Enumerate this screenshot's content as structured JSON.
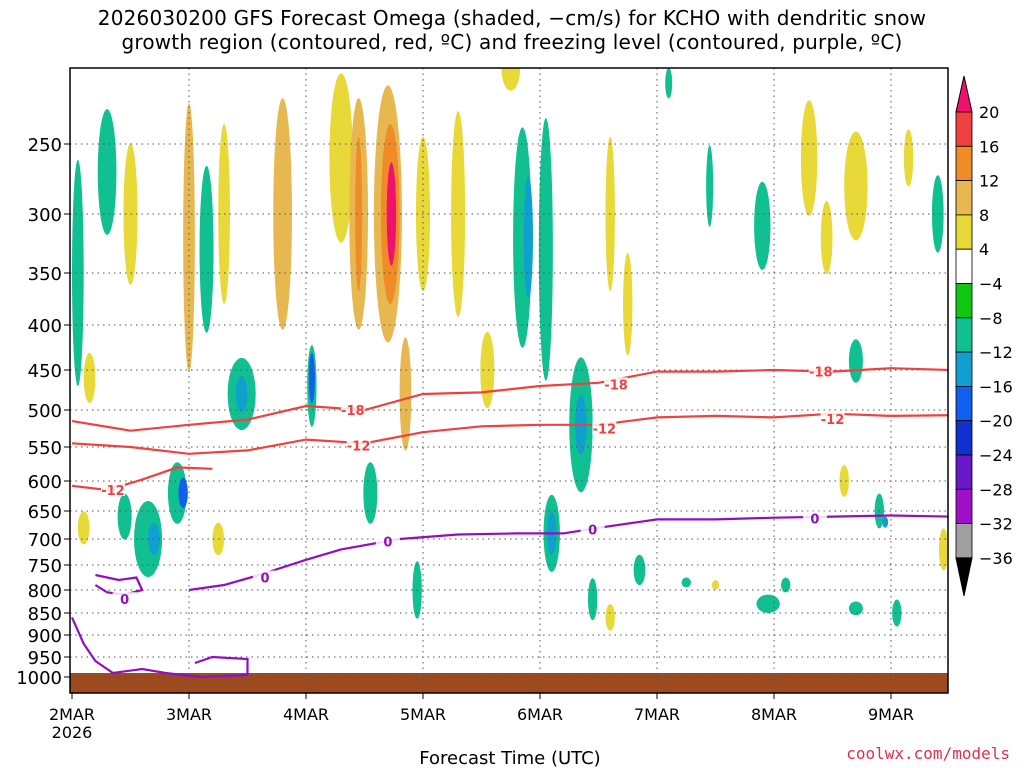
{
  "title": {
    "line1": "2026030200 GFS Forecast Omega (shaded, −cm/s) for KCHO with dendritic snow",
    "line2": "growth region (contoured, red, ºC) and freezing level (contoured, purple, ºC)"
  },
  "credit": "coolwx.com/models",
  "colors": {
    "ground": "#9c4a1e",
    "red_contour": "#f04040",
    "purple_contour": "#9010c0",
    "grid": "#555555"
  },
  "chart_data": {
    "type": "heatmap",
    "title": "2026030200 GFS Forecast Omega (shaded, −cm/s) for KCHO",
    "xlabel": "Forecast Time (UTC)",
    "ylabel": "",
    "x_range_days": [
      0,
      7.5
    ],
    "y_ticks": [
      250,
      300,
      350,
      400,
      450,
      500,
      550,
      600,
      650,
      700,
      750,
      800,
      850,
      900,
      950,
      1000
    ],
    "y_tick_labels": [
      "250",
      "300",
      "350",
      "400",
      "450",
      "500",
      "550",
      "600",
      "650",
      "700",
      "750",
      "800",
      "850",
      "900",
      "950",
      "1000"
    ],
    "x_ticks": [
      {
        "day": 0,
        "label": "2MAR",
        "sub": "2026"
      },
      {
        "day": 1,
        "label": "3MAR",
        "sub": ""
      },
      {
        "day": 2,
        "label": "4MAR",
        "sub": ""
      },
      {
        "day": 3,
        "label": "5MAR",
        "sub": ""
      },
      {
        "day": 4,
        "label": "6MAR",
        "sub": ""
      },
      {
        "day": 5,
        "label": "7MAR",
        "sub": ""
      },
      {
        "day": 6,
        "label": "8MAR",
        "sub": ""
      },
      {
        "day": 7,
        "label": "9MAR",
        "sub": ""
      }
    ],
    "colorbar": {
      "levels": [
        20,
        16,
        12,
        8,
        4,
        -4,
        -8,
        -12,
        -16,
        -20,
        -24,
        -28,
        -32,
        -36
      ],
      "colors": [
        "#f0106e",
        "#f04040",
        "#f08c28",
        "#e8b850",
        "#e8d838",
        "#ffffff",
        "#10c810",
        "#10c090",
        "#10a0d0",
        "#1060f0",
        "#1030d0",
        "#6818c8",
        "#a010c8",
        "#a0a0a0",
        "#000000"
      ]
    },
    "omega_blobs": [
      {
        "t": 0.05,
        "p": 350,
        "dt": 0.05,
        "dp": 200,
        "v": -8
      },
      {
        "t": 0.3,
        "p": 270,
        "dt": 0.08,
        "dp": 90,
        "v": -8
      },
      {
        "t": 0.5,
        "p": 300,
        "dt": 0.06,
        "dp": 110,
        "v": 6
      },
      {
        "t": 0.15,
        "p": 460,
        "dt": 0.05,
        "dp": 60,
        "v": 6
      },
      {
        "t": 0.65,
        "p": 700,
        "dt": 0.12,
        "dp": 140,
        "v": -8
      },
      {
        "t": 0.7,
        "p": 700,
        "dt": 0.05,
        "dp": 60,
        "v": -14
      },
      {
        "t": 0.45,
        "p": 660,
        "dt": 0.06,
        "dp": 80,
        "v": -8
      },
      {
        "t": 0.1,
        "p": 680,
        "dt": 0.05,
        "dp": 60,
        "v": 6
      },
      {
        "t": 1.0,
        "p": 320,
        "dt": 0.05,
        "dp": 220,
        "v": 8
      },
      {
        "t": 1.15,
        "p": 330,
        "dt": 0.06,
        "dp": 140,
        "v": -8
      },
      {
        "t": 1.3,
        "p": 300,
        "dt": 0.05,
        "dp": 140,
        "v": 6
      },
      {
        "t": 1.45,
        "p": 480,
        "dt": 0.12,
        "dp": 90,
        "v": -8
      },
      {
        "t": 1.45,
        "p": 480,
        "dt": 0.05,
        "dp": 45,
        "v": -14
      },
      {
        "t": 0.9,
        "p": 620,
        "dt": 0.08,
        "dp": 100,
        "v": -10
      },
      {
        "t": 0.95,
        "p": 620,
        "dt": 0.04,
        "dp": 50,
        "v": -16
      },
      {
        "t": 1.25,
        "p": 700,
        "dt": 0.05,
        "dp": 60,
        "v": 6
      },
      {
        "t": 1.8,
        "p": 300,
        "dt": 0.08,
        "dp": 180,
        "v": 8
      },
      {
        "t": 2.05,
        "p": 470,
        "dt": 0.04,
        "dp": 100,
        "v": -10
      },
      {
        "t": 2.05,
        "p": 460,
        "dt": 0.02,
        "dp": 60,
        "v": -18
      },
      {
        "t": 2.3,
        "p": 260,
        "dt": 0.1,
        "dp": 120,
        "v": 6
      },
      {
        "t": 2.45,
        "p": 300,
        "dt": 0.08,
        "dp": 180,
        "v": 8
      },
      {
        "t": 2.45,
        "p": 300,
        "dt": 0.03,
        "dp": 120,
        "v": 12
      },
      {
        "t": 2.7,
        "p": 300,
        "dt": 0.12,
        "dp": 200,
        "v": 8
      },
      {
        "t": 2.72,
        "p": 300,
        "dt": 0.08,
        "dp": 140,
        "v": 12
      },
      {
        "t": 2.73,
        "p": 300,
        "dt": 0.04,
        "dp": 80,
        "v": 20
      },
      {
        "t": 2.85,
        "p": 480,
        "dt": 0.05,
        "dp": 140,
        "v": 8
      },
      {
        "t": 3.0,
        "p": 300,
        "dt": 0.06,
        "dp": 120,
        "v": 6
      },
      {
        "t": 2.55,
        "p": 620,
        "dt": 0.06,
        "dp": 100,
        "v": -8
      },
      {
        "t": 2.95,
        "p": 800,
        "dt": 0.04,
        "dp": 120,
        "v": -8
      },
      {
        "t": 3.3,
        "p": 300,
        "dt": 0.06,
        "dp": 160,
        "v": 6
      },
      {
        "t": 3.55,
        "p": 450,
        "dt": 0.06,
        "dp": 90,
        "v": 6
      },
      {
        "t": 3.75,
        "p": 200,
        "dt": 0.08,
        "dp": 60,
        "v": 6
      },
      {
        "t": 3.85,
        "p": 320,
        "dt": 0.08,
        "dp": 180,
        "v": -8
      },
      {
        "t": 3.9,
        "p": 320,
        "dt": 0.04,
        "dp": 100,
        "v": -14
      },
      {
        "t": 4.05,
        "p": 330,
        "dt": 0.06,
        "dp": 220,
        "v": -8
      },
      {
        "t": 4.1,
        "p": 690,
        "dt": 0.07,
        "dp": 140,
        "v": -8
      },
      {
        "t": 4.1,
        "p": 690,
        "dt": 0.04,
        "dp": 80,
        "v": -14
      },
      {
        "t": 4.35,
        "p": 520,
        "dt": 0.1,
        "dp": 180,
        "v": -8
      },
      {
        "t": 4.35,
        "p": 520,
        "dt": 0.05,
        "dp": 80,
        "v": -12
      },
      {
        "t": 4.6,
        "p": 300,
        "dt": 0.04,
        "dp": 120,
        "v": 6
      },
      {
        "t": 4.75,
        "p": 380,
        "dt": 0.04,
        "dp": 100,
        "v": 6
      },
      {
        "t": 4.45,
        "p": 820,
        "dt": 0.04,
        "dp": 90,
        "v": -8
      },
      {
        "t": 4.6,
        "p": 860,
        "dt": 0.04,
        "dp": 60,
        "v": 6
      },
      {
        "t": 4.85,
        "p": 760,
        "dt": 0.05,
        "dp": 60,
        "v": -8
      },
      {
        "t": 5.1,
        "p": 210,
        "dt": 0.03,
        "dp": 20,
        "v": -8
      },
      {
        "t": 5.45,
        "p": 280,
        "dt": 0.03,
        "dp": 60,
        "v": -8
      },
      {
        "t": 5.9,
        "p": 310,
        "dt": 0.07,
        "dp": 70,
        "v": -8
      },
      {
        "t": 5.95,
        "p": 830,
        "dt": 0.1,
        "dp": 40,
        "v": -8
      },
      {
        "t": 6.3,
        "p": 260,
        "dt": 0.07,
        "dp": 80,
        "v": 6
      },
      {
        "t": 6.45,
        "p": 320,
        "dt": 0.05,
        "dp": 60,
        "v": 6
      },
      {
        "t": 6.7,
        "p": 280,
        "dt": 0.1,
        "dp": 80,
        "v": 6
      },
      {
        "t": 6.7,
        "p": 440,
        "dt": 0.06,
        "dp": 50,
        "v": -8
      },
      {
        "t": 6.9,
        "p": 650,
        "dt": 0.04,
        "dp": 60,
        "v": -8
      },
      {
        "t": 6.95,
        "p": 670,
        "dt": 0.02,
        "dp": 20,
        "v": -14
      },
      {
        "t": 6.7,
        "p": 840,
        "dt": 0.06,
        "dp": 30,
        "v": -8
      },
      {
        "t": 7.05,
        "p": 850,
        "dt": 0.04,
        "dp": 60,
        "v": -8
      },
      {
        "t": 7.15,
        "p": 260,
        "dt": 0.04,
        "dp": 40,
        "v": 6
      },
      {
        "t": 7.4,
        "p": 300,
        "dt": 0.05,
        "dp": 60,
        "v": -8
      },
      {
        "t": 7.45,
        "p": 720,
        "dt": 0.04,
        "dp": 80,
        "v": 6
      },
      {
        "t": 6.6,
        "p": 600,
        "dt": 0.04,
        "dp": 50,
        "v": 6
      },
      {
        "t": 6.1,
        "p": 790,
        "dt": 0.04,
        "dp": 30,
        "v": -8
      },
      {
        "t": 5.5,
        "p": 790,
        "dt": 0.03,
        "dp": 20,
        "v": 6
      },
      {
        "t": 5.25,
        "p": 785,
        "dt": 0.04,
        "dp": 20,
        "v": -8
      }
    ],
    "contours": [
      {
        "label": "-18",
        "color_key": "red_contour",
        "points": [
          [
            0,
            515
          ],
          [
            0.5,
            528
          ],
          [
            1.0,
            520
          ],
          [
            1.5,
            513
          ],
          [
            2.0,
            495
          ],
          [
            2.5,
            500
          ],
          [
            3.0,
            480
          ],
          [
            3.5,
            478
          ],
          [
            4.0,
            470
          ],
          [
            4.5,
            466
          ],
          [
            5.0,
            452
          ],
          [
            5.5,
            452
          ],
          [
            6.0,
            450
          ],
          [
            6.5,
            452
          ],
          [
            7.0,
            448
          ],
          [
            7.5,
            450
          ]
        ],
        "label_at": [
          [
            2.4,
            500
          ],
          [
            4.65,
            468
          ],
          [
            6.4,
            452
          ]
        ]
      },
      {
        "label": "-12",
        "color_key": "red_contour",
        "points": [
          [
            0,
            545
          ],
          [
            0.5,
            550
          ],
          [
            1.0,
            560
          ],
          [
            1.5,
            555
          ],
          [
            2.0,
            540
          ],
          [
            2.5,
            545
          ],
          [
            3.0,
            530
          ],
          [
            3.5,
            522
          ],
          [
            4.0,
            520
          ],
          [
            4.5,
            520
          ],
          [
            5.0,
            510
          ],
          [
            5.5,
            508
          ],
          [
            6.0,
            510
          ],
          [
            6.5,
            505
          ],
          [
            7.0,
            508
          ],
          [
            7.5,
            507
          ]
        ],
        "label_at": [
          [
            2.45,
            548
          ],
          [
            4.55,
            525
          ],
          [
            6.5,
            512
          ]
        ]
      },
      {
        "label": "-12",
        "color_key": "red_contour",
        "points": [
          [
            0,
            608
          ],
          [
            0.3,
            615
          ],
          [
            0.6,
            598
          ],
          [
            0.9,
            580
          ],
          [
            1.2,
            582
          ]
        ],
        "label_at": [
          [
            0.35,
            615
          ]
        ]
      },
      {
        "label": "0",
        "color_key": "purple_contour",
        "points": [
          [
            1.0,
            800
          ],
          [
            1.3,
            790
          ],
          [
            1.6,
            770
          ],
          [
            2.0,
            740
          ],
          [
            2.3,
            720
          ],
          [
            2.8,
            700
          ],
          [
            3.3,
            692
          ],
          [
            3.8,
            690
          ],
          [
            4.2,
            690
          ],
          [
            4.5,
            680
          ],
          [
            5.0,
            665
          ],
          [
            5.5,
            665
          ],
          [
            6.0,
            662
          ],
          [
            6.5,
            660
          ],
          [
            7.0,
            658
          ],
          [
            7.5,
            660
          ]
        ],
        "label_at": [
          [
            1.65,
            775
          ],
          [
            2.7,
            705
          ],
          [
            4.45,
            683
          ],
          [
            6.35,
            663
          ]
        ]
      },
      {
        "label": "0",
        "color_key": "purple_contour",
        "points": [
          [
            0.2,
            770
          ],
          [
            0.4,
            780
          ],
          [
            0.55,
            775
          ],
          [
            0.6,
            800
          ],
          [
            0.45,
            810
          ],
          [
            0.3,
            805
          ],
          [
            0.2,
            790
          ]
        ],
        "label_at": [
          [
            0.45,
            820
          ]
        ]
      },
      {
        "label": "",
        "color_key": "purple_contour",
        "points": [
          [
            0,
            860
          ],
          [
            0.1,
            920
          ],
          [
            0.2,
            960
          ],
          [
            0.35,
            990
          ],
          [
            0.6,
            980
          ],
          [
            0.8,
            990
          ],
          [
            1.1,
            1000
          ],
          [
            1.5,
            995
          ],
          [
            1.5,
            955
          ],
          [
            1.2,
            950
          ],
          [
            1.05,
            965
          ]
        ],
        "label_at": []
      }
    ]
  }
}
